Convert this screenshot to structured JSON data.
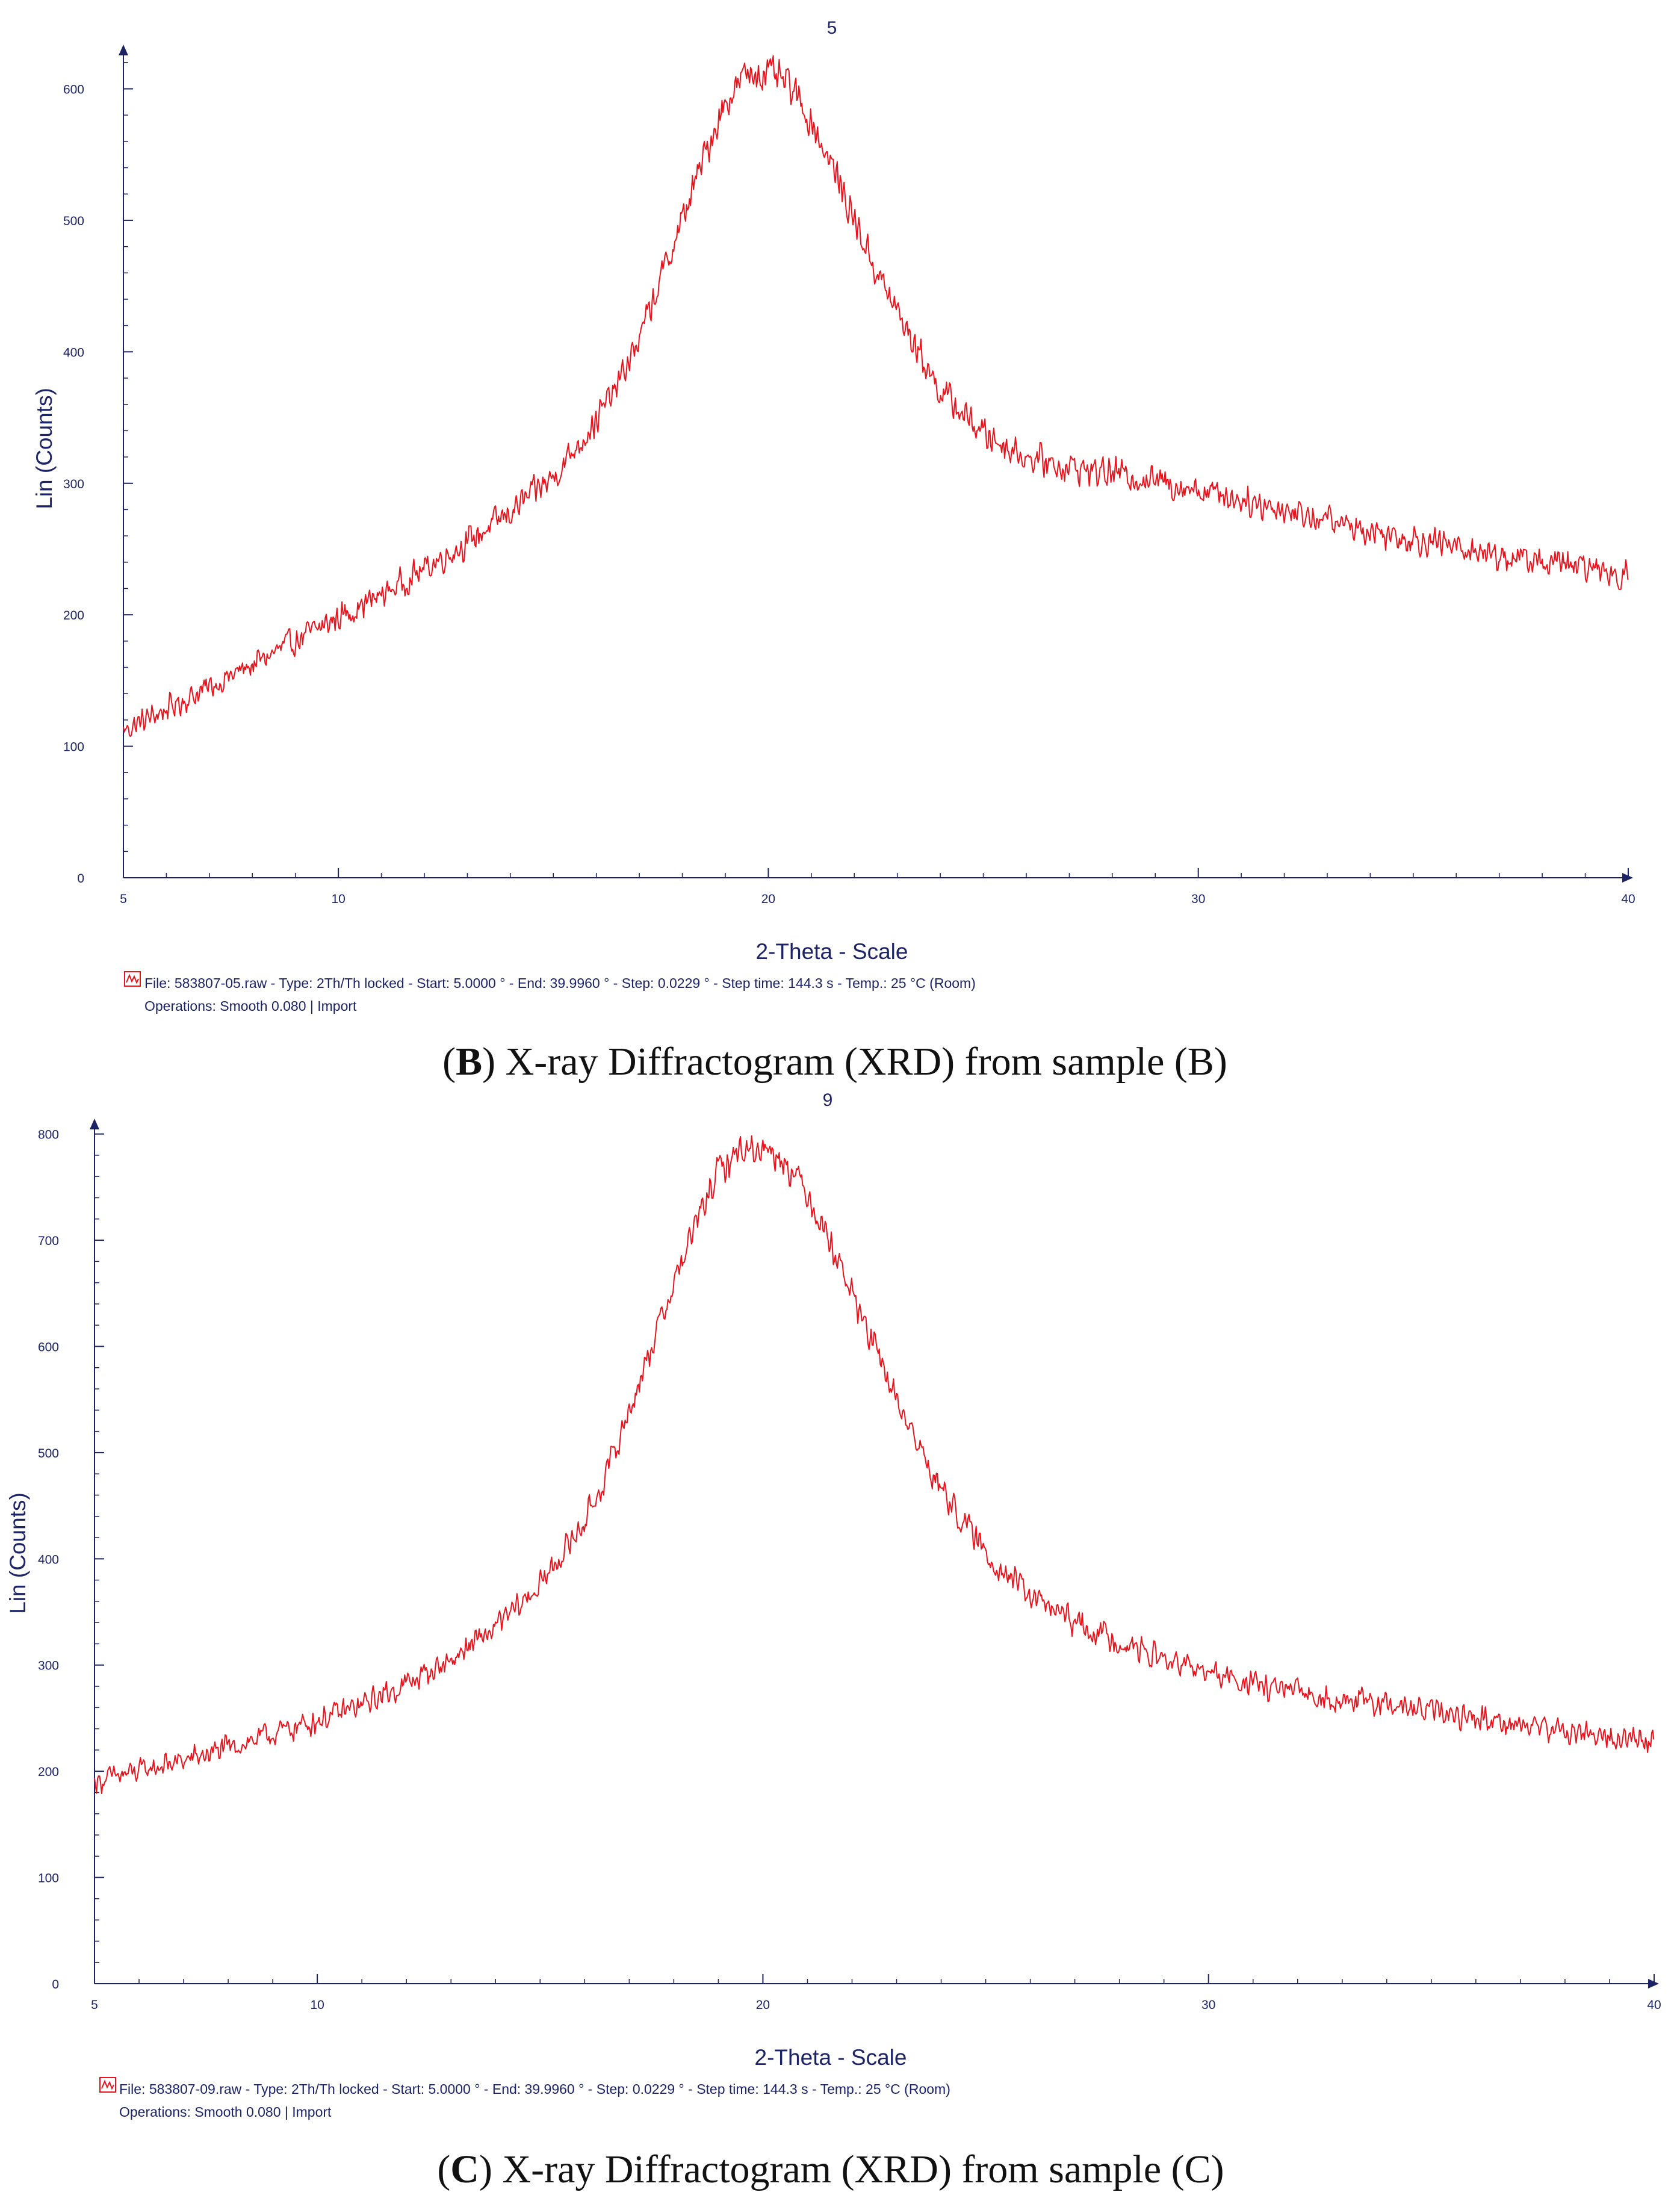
{
  "colors": {
    "axis": "#1c2466",
    "trace": "#e8141b",
    "caption": "#111111"
  },
  "icon_names": [
    "legend-trace-icon"
  ],
  "panels": [
    {
      "caption": {
        "open_paren": "(",
        "letter": "B",
        "rest": ") X-ray Diffractogram (XRD) from sample (B)"
      },
      "info": {
        "file_line": "File: 583807-05.raw - Type: 2Th/Th locked - Start: 5.0000 ° - End: 39.9960 ° - Step: 0.0229 ° - Step time: 144.3 s - Temp.: 25 °C (Room)",
        "operations_line": "Operations: Smooth 0.080 | Import"
      }
    },
    {
      "caption": {
        "open_paren": "(",
        "letter": "C",
        "rest": ") X-ray Diffractogram (XRD) from sample (C)"
      },
      "info": {
        "file_line": "File: 583807-09.raw - Type: 2Th/Th locked - Start: 5.0000 ° - End: 39.9960 ° - Step: 0.0229 ° - Step time: 144.3 s - Temp.: 25 °C (Room)",
        "operations_line": "Operations: Smooth 0.080 | Import"
      }
    }
  ],
  "chart_data": [
    {
      "type": "line",
      "title": "5",
      "xlabel": "2-Theta - Scale",
      "ylabel": "Lin (Counts)",
      "xlim": [
        5,
        40
      ],
      "ylim": [
        0,
        630
      ],
      "xticks": [
        5,
        10,
        20,
        30,
        40
      ],
      "yticks": [
        0,
        100,
        200,
        300,
        400,
        500,
        600
      ],
      "grid": false,
      "series": [
        {
          "name": "583807-05.raw",
          "x": [
            5,
            6,
            7,
            8,
            9,
            10,
            11,
            12,
            13,
            14,
            15,
            16,
            16.5,
            17,
            17.5,
            18,
            18.5,
            19,
            19.5,
            20,
            20.5,
            21,
            21.5,
            22,
            22.5,
            23,
            23.5,
            24,
            25,
            26,
            27,
            28,
            29,
            30,
            31,
            32,
            33,
            34,
            35,
            36,
            37,
            38,
            39,
            40
          ],
          "y": [
            112,
            128,
            145,
            162,
            180,
            198,
            215,
            235,
            255,
            278,
            305,
            348,
            375,
            410,
            455,
            500,
            548,
            590,
            612,
            612,
            602,
            575,
            540,
            500,
            462,
            430,
            400,
            370,
            338,
            320,
            312,
            308,
            302,
            296,
            288,
            280,
            272,
            264,
            258,
            252,
            245,
            240,
            236,
            230
          ],
          "noise_amplitude": 14
        }
      ]
    },
    {
      "type": "line",
      "title": "9",
      "xlabel": "2-Theta - Scale",
      "ylabel": "Lin (Counts)",
      "xlim": [
        5,
        40
      ],
      "ylim": [
        0,
        810
      ],
      "xticks": [
        5,
        10,
        20,
        30,
        40
      ],
      "yticks": [
        0,
        100,
        200,
        300,
        400,
        500,
        600,
        700,
        800
      ],
      "grid": false,
      "series": [
        {
          "name": "583807-09.raw",
          "x": [
            5,
            6,
            7,
            8,
            9,
            10,
            11,
            12,
            13,
            14,
            15,
            16,
            16.5,
            17,
            17.5,
            18,
            18.5,
            19,
            19.5,
            20,
            20.5,
            21,
            21.5,
            22,
            22.5,
            23,
            23.5,
            24,
            25,
            26,
            27,
            28,
            29,
            30,
            31,
            32,
            33,
            34,
            35,
            36,
            37,
            38,
            39,
            40
          ],
          "y": [
            190,
            200,
            210,
            222,
            235,
            248,
            262,
            282,
            305,
            335,
            375,
            435,
            480,
            540,
            600,
            660,
            715,
            765,
            785,
            788,
            775,
            745,
            700,
            650,
            598,
            550,
            505,
            465,
            405,
            365,
            340,
            322,
            305,
            292,
            282,
            274,
            268,
            262,
            256,
            250,
            244,
            238,
            232,
            228
          ],
          "noise_amplitude": 15
        }
      ]
    }
  ]
}
